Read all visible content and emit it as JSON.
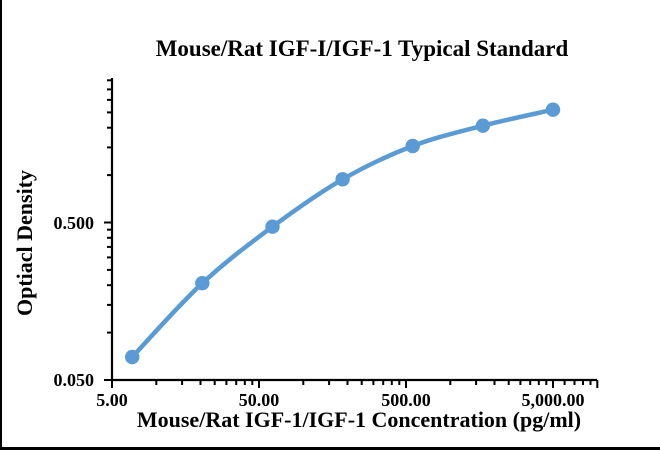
{
  "chart_data": {
    "type": "line",
    "title": "Mouse/Rat IGF-I/IGF-1 Typical Standard",
    "xlabel": "Mouse/Rat IGF-1/IGF-1 Concentration (pg/ml)",
    "ylabel": "Optiacl Density",
    "x_scale": "log",
    "y_scale": "log",
    "xlim": [
      5,
      10000
    ],
    "ylim": [
      0.05,
      4.0
    ],
    "grid": "off",
    "legend": "none",
    "background_color": "#ffffff",
    "axis_color": "#000000",
    "x_major_ticks": [
      {
        "value": 5,
        "label": "5.00"
      },
      {
        "value": 50,
        "label": "50.00"
      },
      {
        "value": 500,
        "label": "500.00"
      },
      {
        "value": 5000,
        "label": "5,000.00"
      },
      {
        "value": 10000,
        "label": ""
      }
    ],
    "x_minor_ticks": [
      10,
      15,
      20,
      25,
      30,
      35,
      40,
      45,
      100,
      150,
      200,
      250,
      300,
      350,
      400,
      450,
      1000,
      1500,
      2000,
      2500,
      3000,
      3500,
      4000,
      4500,
      6000,
      7000,
      8000,
      9000
    ],
    "y_major_ticks": [
      {
        "value": 0.05,
        "label": "0.050"
      },
      {
        "value": 0.5,
        "label": "0.500"
      }
    ],
    "y_minor_ticks": [
      0.1,
      0.15,
      0.2,
      0.25,
      0.3,
      0.35,
      0.4,
      0.45,
      1,
      1.5,
      2,
      2.5,
      3,
      3.5,
      4
    ],
    "series": [
      {
        "name": "Typical Standard",
        "color": "#5B9BD5",
        "line_style": "smooth",
        "marker": "circle",
        "points": [
          {
            "concentration_pg_ml": 6.86,
            "optical_density": 0.07
          },
          {
            "concentration_pg_ml": 20.58,
            "optical_density": 0.206
          },
          {
            "concentration_pg_ml": 61.73,
            "optical_density": 0.47
          },
          {
            "concentration_pg_ml": 185.19,
            "optical_density": 0.94
          },
          {
            "concentration_pg_ml": 555.56,
            "optical_density": 1.53
          },
          {
            "concentration_pg_ml": 1666.67,
            "optical_density": 2.06
          },
          {
            "concentration_pg_ml": 5000,
            "optical_density": 2.6
          }
        ]
      }
    ]
  }
}
